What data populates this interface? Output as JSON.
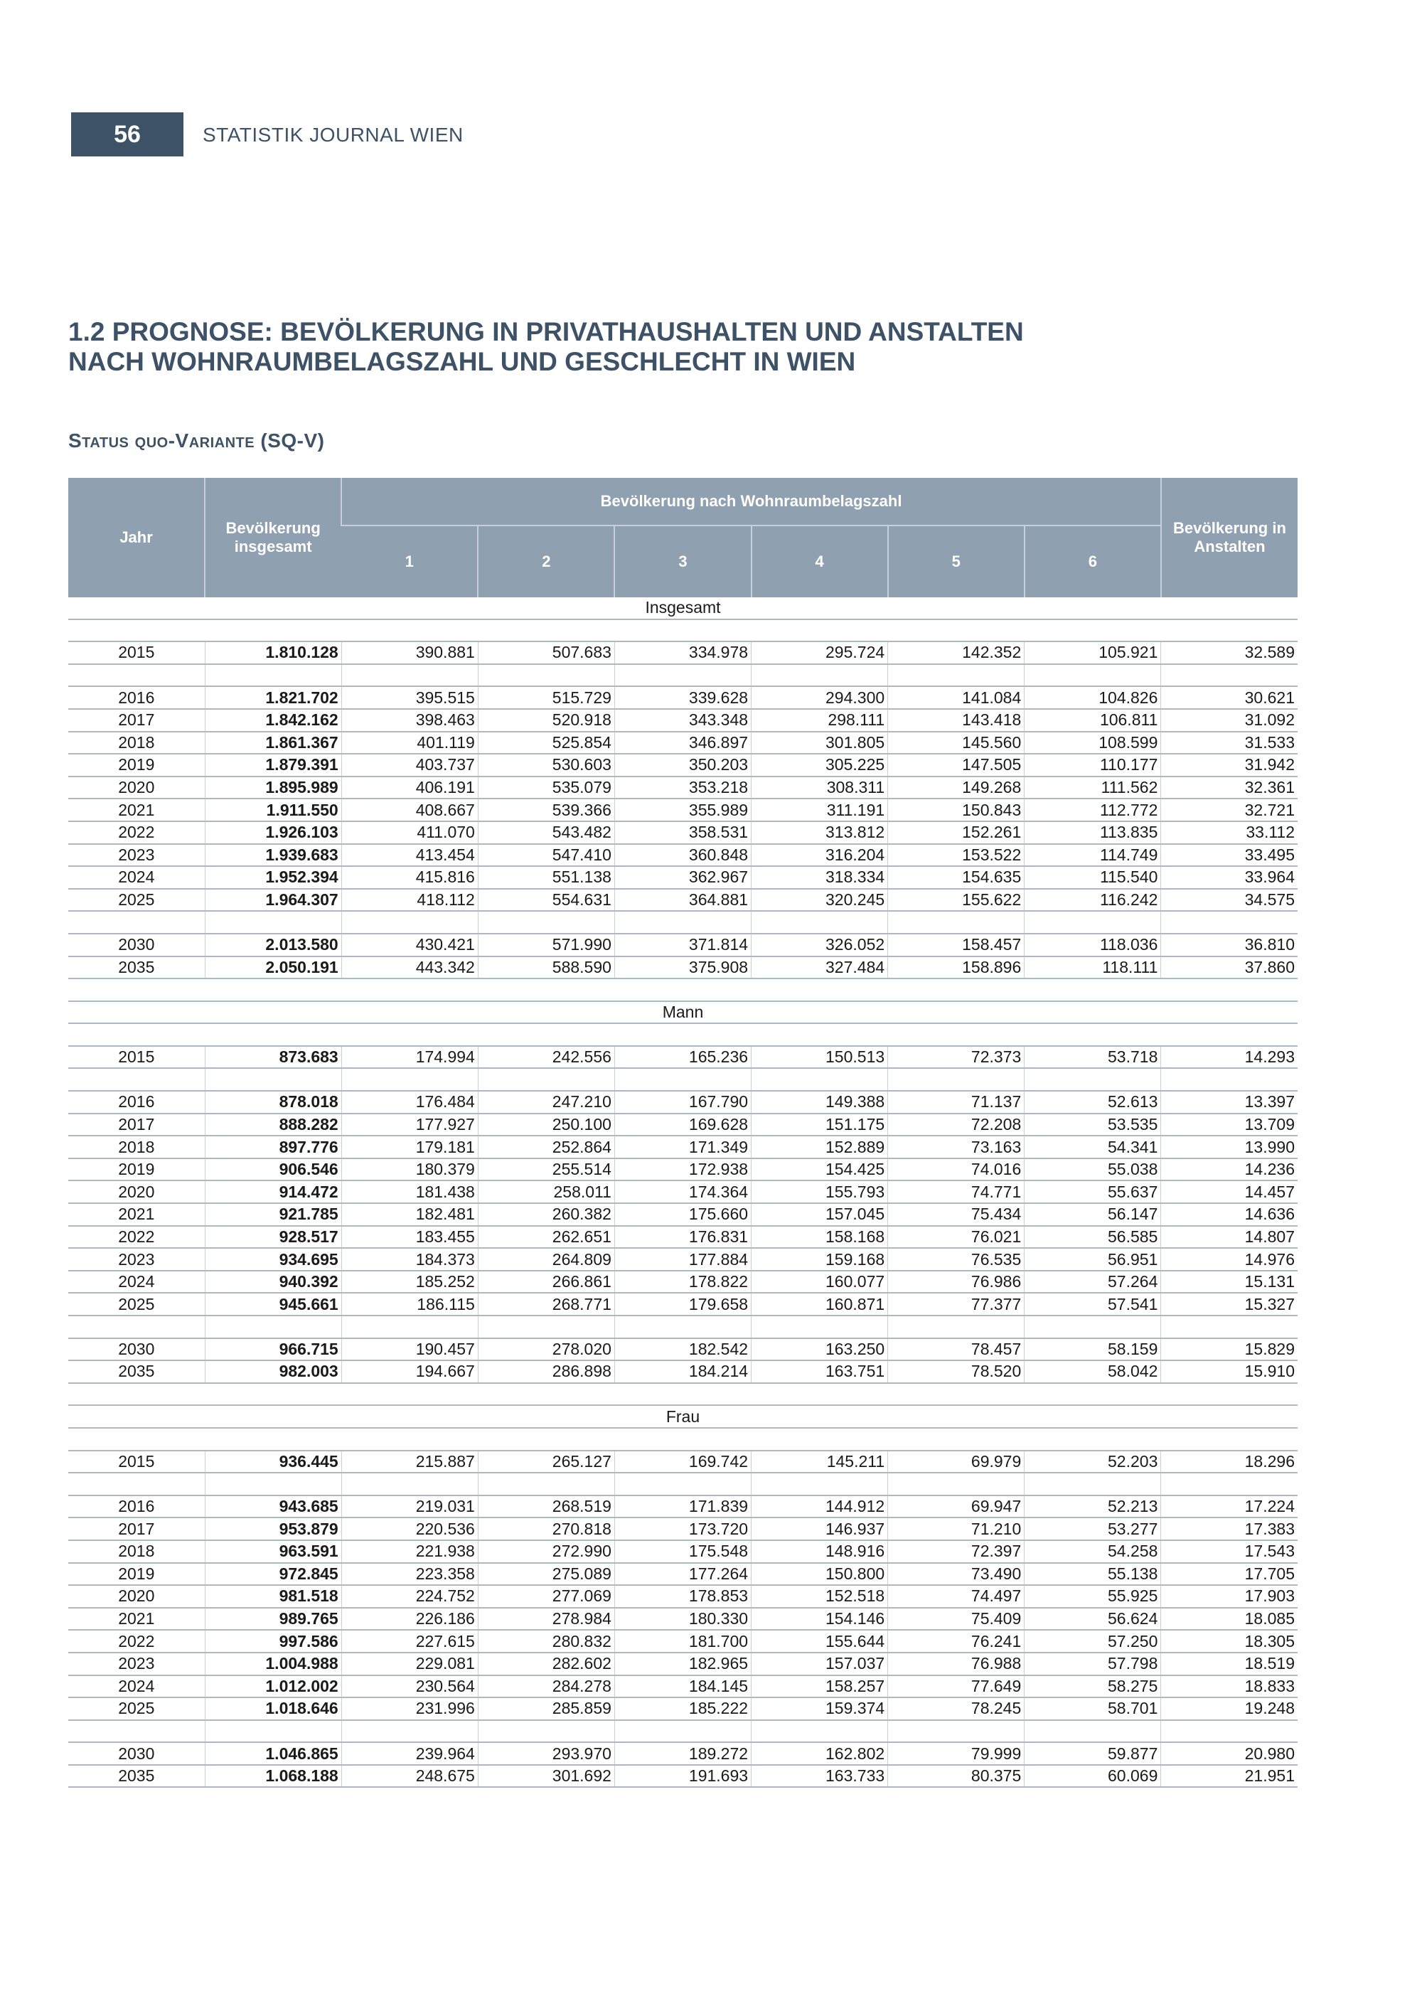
{
  "header": {
    "page_number": "56",
    "journal": "STATISTIK JOURNAL WIEN"
  },
  "title_line1": "1.2 PROGNOSE: BEVÖLKERUNG IN PRIVATHAUSHALTEN UND ANSTALTEN",
  "title_line2": "NACH WOHNRAUMBELAGSZAHL UND GESCHLECHT IN WIEN",
  "subtitle": "Status quo-Variante (SQ-V)",
  "table": {
    "headers": {
      "year": "Jahr",
      "total": "Bevölkerung insgesamt",
      "group": "Bevölkerung nach Wohnraumbelagszahl",
      "sub": [
        "1",
        "2",
        "3",
        "4",
        "5",
        "6"
      ],
      "institutions": "Bevölkerung in Anstalten"
    },
    "sections": [
      {
        "label": "Insgesamt",
        "rows": [
          [
            "2015",
            "1.810.128",
            "390.881",
            "507.683",
            "334.978",
            "295.724",
            "142.352",
            "105.921",
            "32.589"
          ],
          null,
          [
            "2016",
            "1.821.702",
            "395.515",
            "515.729",
            "339.628",
            "294.300",
            "141.084",
            "104.826",
            "30.621"
          ],
          [
            "2017",
            "1.842.162",
            "398.463",
            "520.918",
            "343.348",
            "298.111",
            "143.418",
            "106.811",
            "31.092"
          ],
          [
            "2018",
            "1.861.367",
            "401.119",
            "525.854",
            "346.897",
            "301.805",
            "145.560",
            "108.599",
            "31.533"
          ],
          [
            "2019",
            "1.879.391",
            "403.737",
            "530.603",
            "350.203",
            "305.225",
            "147.505",
            "110.177",
            "31.942"
          ],
          [
            "2020",
            "1.895.989",
            "406.191",
            "535.079",
            "353.218",
            "308.311",
            "149.268",
            "111.562",
            "32.361"
          ],
          [
            "2021",
            "1.911.550",
            "408.667",
            "539.366",
            "355.989",
            "311.191",
            "150.843",
            "112.772",
            "32.721"
          ],
          [
            "2022",
            "1.926.103",
            "411.070",
            "543.482",
            "358.531",
            "313.812",
            "152.261",
            "113.835",
            "33.112"
          ],
          [
            "2023",
            "1.939.683",
            "413.454",
            "547.410",
            "360.848",
            "316.204",
            "153.522",
            "114.749",
            "33.495"
          ],
          [
            "2024",
            "1.952.394",
            "415.816",
            "551.138",
            "362.967",
            "318.334",
            "154.635",
            "115.540",
            "33.964"
          ],
          [
            "2025",
            "1.964.307",
            "418.112",
            "554.631",
            "364.881",
            "320.245",
            "155.622",
            "116.242",
            "34.575"
          ],
          null,
          [
            "2030",
            "2.013.580",
            "430.421",
            "571.990",
            "371.814",
            "326.052",
            "158.457",
            "118.036",
            "36.810"
          ],
          [
            "2035",
            "2.050.191",
            "443.342",
            "588.590",
            "375.908",
            "327.484",
            "158.896",
            "118.111",
            "37.860"
          ]
        ]
      },
      {
        "label": "Mann",
        "rows": [
          [
            "2015",
            "873.683",
            "174.994",
            "242.556",
            "165.236",
            "150.513",
            "72.373",
            "53.718",
            "14.293"
          ],
          null,
          [
            "2016",
            "878.018",
            "176.484",
            "247.210",
            "167.790",
            "149.388",
            "71.137",
            "52.613",
            "13.397"
          ],
          [
            "2017",
            "888.282",
            "177.927",
            "250.100",
            "169.628",
            "151.175",
            "72.208",
            "53.535",
            "13.709"
          ],
          [
            "2018",
            "897.776",
            "179.181",
            "252.864",
            "171.349",
            "152.889",
            "73.163",
            "54.341",
            "13.990"
          ],
          [
            "2019",
            "906.546",
            "180.379",
            "255.514",
            "172.938",
            "154.425",
            "74.016",
            "55.038",
            "14.236"
          ],
          [
            "2020",
            "914.472",
            "181.438",
            "258.011",
            "174.364",
            "155.793",
            "74.771",
            "55.637",
            "14.457"
          ],
          [
            "2021",
            "921.785",
            "182.481",
            "260.382",
            "175.660",
            "157.045",
            "75.434",
            "56.147",
            "14.636"
          ],
          [
            "2022",
            "928.517",
            "183.455",
            "262.651",
            "176.831",
            "158.168",
            "76.021",
            "56.585",
            "14.807"
          ],
          [
            "2023",
            "934.695",
            "184.373",
            "264.809",
            "177.884",
            "159.168",
            "76.535",
            "56.951",
            "14.976"
          ],
          [
            "2024",
            "940.392",
            "185.252",
            "266.861",
            "178.822",
            "160.077",
            "76.986",
            "57.264",
            "15.131"
          ],
          [
            "2025",
            "945.661",
            "186.115",
            "268.771",
            "179.658",
            "160.871",
            "77.377",
            "57.541",
            "15.327"
          ],
          null,
          [
            "2030",
            "966.715",
            "190.457",
            "278.020",
            "182.542",
            "163.250",
            "78.457",
            "58.159",
            "15.829"
          ],
          [
            "2035",
            "982.003",
            "194.667",
            "286.898",
            "184.214",
            "163.751",
            "78.520",
            "58.042",
            "15.910"
          ]
        ]
      },
      {
        "label": "Frau",
        "rows": [
          [
            "2015",
            "936.445",
            "215.887",
            "265.127",
            "169.742",
            "145.211",
            "69.979",
            "52.203",
            "18.296"
          ],
          null,
          [
            "2016",
            "943.685",
            "219.031",
            "268.519",
            "171.839",
            "144.912",
            "69.947",
            "52.213",
            "17.224"
          ],
          [
            "2017",
            "953.879",
            "220.536",
            "270.818",
            "173.720",
            "146.937",
            "71.210",
            "53.277",
            "17.383"
          ],
          [
            "2018",
            "963.591",
            "221.938",
            "272.990",
            "175.548",
            "148.916",
            "72.397",
            "54.258",
            "17.543"
          ],
          [
            "2019",
            "972.845",
            "223.358",
            "275.089",
            "177.264",
            "150.800",
            "73.490",
            "55.138",
            "17.705"
          ],
          [
            "2020",
            "981.518",
            "224.752",
            "277.069",
            "178.853",
            "152.518",
            "74.497",
            "55.925",
            "17.903"
          ],
          [
            "2021",
            "989.765",
            "226.186",
            "278.984",
            "180.330",
            "154.146",
            "75.409",
            "56.624",
            "18.085"
          ],
          [
            "2022",
            "997.586",
            "227.615",
            "280.832",
            "181.700",
            "155.644",
            "76.241",
            "57.250",
            "18.305"
          ],
          [
            "2023",
            "1.004.988",
            "229.081",
            "282.602",
            "182.965",
            "157.037",
            "76.988",
            "57.798",
            "18.519"
          ],
          [
            "2024",
            "1.012.002",
            "230.564",
            "284.278",
            "184.145",
            "158.257",
            "77.649",
            "58.275",
            "18.833"
          ],
          [
            "2025",
            "1.018.646",
            "231.996",
            "285.859",
            "185.222",
            "159.374",
            "78.245",
            "58.701",
            "19.248"
          ],
          null,
          [
            "2030",
            "1.046.865",
            "239.964",
            "293.970",
            "189.272",
            "162.802",
            "79.999",
            "59.877",
            "20.980"
          ],
          [
            "2035",
            "1.068.188",
            "248.675",
            "301.692",
            "191.693",
            "163.733",
            "80.375",
            "60.069",
            "21.951"
          ]
        ]
      }
    ]
  },
  "colors": {
    "brand": "#3d5266",
    "header_bg": "#8fa0b1"
  }
}
